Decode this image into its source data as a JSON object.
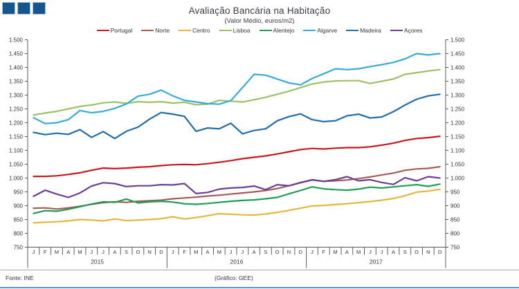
{
  "header": {
    "title": "Avaliação Bancária na Habitação",
    "subtitle": "(Valor Médio, euros/m2)"
  },
  "footer": {
    "source": "Fonte: INE",
    "credit": "(Gráfico: GEE)"
  },
  "logo": {
    "squares": 3,
    "color": "#15568f"
  },
  "colors": {
    "axis": "#595959",
    "footer_rule": "#a6a6a6",
    "bottom_bar": "#5b93cf",
    "text": "#333333"
  },
  "chart_data": {
    "type": "line",
    "title": "Avaliação Bancária na Habitação",
    "subtitle": "(Valor Médio, euros/m2)",
    "ylabel": "euros/m2",
    "ylim": [
      750,
      1500
    ],
    "ytick_step": 50,
    "ytick_labels": [
      "750",
      "800",
      "850",
      "900",
      "950",
      "1.000",
      "1.050",
      "1.100",
      "1.150",
      "1.200",
      "1.250",
      "1.300",
      "1.350",
      "1.400",
      "1.450",
      "1.500"
    ],
    "grid": false,
    "legend_position": "top",
    "month_labels": [
      "J",
      "F",
      "M",
      "A",
      "M",
      "J",
      "J",
      "A",
      "S",
      "O",
      "N",
      "D",
      "J",
      "F",
      "M",
      "A",
      "M",
      "J",
      "J",
      "A",
      "S",
      "O",
      "N",
      "D",
      "J",
      "F",
      "M",
      "A",
      "M",
      "J",
      "J",
      "A",
      "S",
      "O",
      "N",
      "D"
    ],
    "years": [
      {
        "label": "2015",
        "start": 0,
        "end": 11
      },
      {
        "label": "2016",
        "start": 12,
        "end": 23
      },
      {
        "label": "2017",
        "start": 24,
        "end": 35
      }
    ],
    "series": [
      {
        "name": "Portugal",
        "color": "#c8161d",
        "values": [
          1006,
          1006,
          1008,
          1013,
          1019,
          1028,
          1036,
          1034,
          1036,
          1039,
          1041,
          1045,
          1048,
          1049,
          1048,
          1052,
          1057,
          1063,
          1070,
          1075,
          1080,
          1087,
          1095,
          1103,
          1107,
          1105,
          1108,
          1110,
          1110,
          1113,
          1119,
          1126,
          1136,
          1143,
          1146,
          1151
        ]
      },
      {
        "name": "Norte",
        "color": "#a25b55",
        "values": [
          891,
          892,
          888,
          892,
          898,
          905,
          911,
          914,
          912,
          916,
          918,
          920,
          925,
          928,
          931,
          935,
          938,
          942,
          946,
          950,
          955,
          962,
          972,
          984,
          994,
          988,
          990,
          993,
          998,
          1004,
          1011,
          1018,
          1028,
          1033,
          1035,
          1041
        ]
      },
      {
        "name": "Centro",
        "color": "#e4b63b",
        "values": [
          838,
          840,
          842,
          845,
          850,
          848,
          845,
          852,
          846,
          848,
          850,
          853,
          860,
          852,
          857,
          864,
          871,
          869,
          867,
          866,
          870,
          876,
          883,
          891,
          899,
          901,
          904,
          907,
          911,
          915,
          920,
          926,
          936,
          949,
          953,
          959
        ]
      },
      {
        "name": "Lisboa",
        "color": "#9cc065",
        "values": [
          1228,
          1235,
          1241,
          1250,
          1259,
          1264,
          1272,
          1275,
          1270,
          1276,
          1274,
          1276,
          1271,
          1274,
          1265,
          1267,
          1281,
          1278,
          1275,
          1283,
          1292,
          1303,
          1314,
          1327,
          1340,
          1347,
          1351,
          1352,
          1352,
          1342,
          1350,
          1358,
          1375,
          1381,
          1387,
          1392
        ]
      },
      {
        "name": "Alentejo",
        "color": "#1e9c52",
        "values": [
          872,
          882,
          880,
          887,
          896,
          906,
          914,
          912,
          924,
          910,
          914,
          916,
          913,
          907,
          905,
          908,
          912,
          916,
          919,
          921,
          925,
          930,
          943,
          955,
          968,
          961,
          958,
          956,
          960,
          967,
          964,
          968,
          972,
          976,
          970,
          978
        ]
      },
      {
        "name": "Algarve",
        "color": "#35abd8",
        "values": [
          1218,
          1197,
          1200,
          1211,
          1244,
          1236,
          1241,
          1252,
          1268,
          1296,
          1303,
          1318,
          1297,
          1281,
          1275,
          1269,
          1267,
          1280,
          1327,
          1375,
          1372,
          1358,
          1344,
          1337,
          1360,
          1377,
          1395,
          1392,
          1395,
          1403,
          1410,
          1418,
          1431,
          1450,
          1445,
          1450
        ]
      },
      {
        "name": "Madeira",
        "color": "#1f6cad",
        "values": [
          1165,
          1157,
          1162,
          1158,
          1175,
          1147,
          1168,
          1143,
          1169,
          1184,
          1213,
          1237,
          1231,
          1223,
          1169,
          1181,
          1178,
          1198,
          1160,
          1172,
          1178,
          1207,
          1222,
          1232,
          1211,
          1204,
          1207,
          1225,
          1231,
          1217,
          1221,
          1240,
          1264,
          1285,
          1297,
          1303
        ]
      },
      {
        "name": "Açores",
        "color": "#6a3e96",
        "values": [
          934,
          956,
          942,
          930,
          946,
          971,
          983,
          980,
          969,
          972,
          972,
          976,
          975,
          980,
          944,
          948,
          960,
          964,
          966,
          971,
          958,
          976,
          972,
          983,
          993,
          988,
          994,
          1005,
          990,
          994,
          984,
          977,
          1001,
          990,
          1005,
          1000
        ]
      }
    ]
  }
}
